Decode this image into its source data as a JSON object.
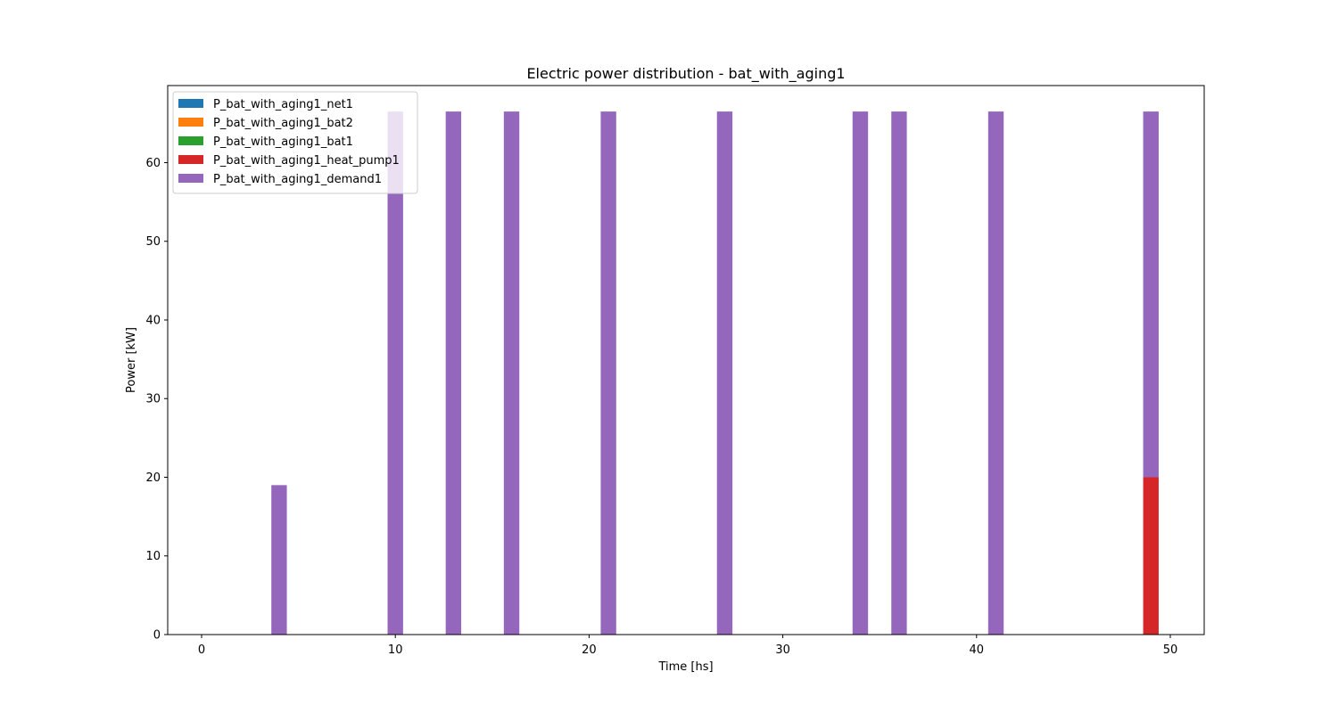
{
  "chart_data": {
    "type": "bar",
    "stacked": true,
    "title": "Electric power distribution - bat_with_aging1",
    "xlabel": "Time [hs]",
    "ylabel": "Power [kW]",
    "xlim": [
      -1.75,
      51.75
    ],
    "ylim": [
      0,
      69.8
    ],
    "xticks": [
      0,
      10,
      20,
      30,
      40,
      50
    ],
    "yticks": [
      0,
      10,
      20,
      30,
      40,
      50,
      60
    ],
    "bar_width": 0.8,
    "grid": false,
    "legend_position": "top-left",
    "x": [
      0,
      1,
      2,
      3,
      4,
      5,
      6,
      7,
      8,
      9,
      10,
      11,
      12,
      13,
      14,
      15,
      16,
      17,
      18,
      19,
      20,
      21,
      22,
      23,
      24,
      25,
      26,
      27,
      28,
      29,
      30,
      31,
      32,
      33,
      34,
      35,
      36,
      37,
      38,
      39,
      40,
      41,
      42,
      43,
      44,
      45,
      46,
      47,
      48,
      49
    ],
    "series": [
      {
        "name": "P_bat_with_aging1_net1",
        "color": "#1f77b4",
        "values": [
          0,
          0,
          0,
          0,
          0,
          0,
          0,
          0,
          0,
          0,
          0,
          0,
          0,
          0,
          0,
          0,
          0,
          0,
          0,
          0,
          0,
          0,
          0,
          0,
          0,
          0,
          0,
          0,
          0,
          0,
          0,
          0,
          0,
          0,
          0,
          0,
          0,
          0,
          0,
          0,
          0,
          0,
          0,
          0,
          0,
          0,
          0,
          0,
          0,
          0
        ]
      },
      {
        "name": "P_bat_with_aging1_bat2",
        "color": "#ff7f0e",
        "values": [
          0,
          0,
          0,
          0,
          0,
          0,
          0,
          0,
          0,
          0,
          0,
          0,
          0,
          0,
          0,
          0,
          0,
          0,
          0,
          0,
          0,
          0,
          0,
          0,
          0,
          0,
          0,
          0,
          0,
          0,
          0,
          0,
          0,
          0,
          0,
          0,
          0,
          0,
          0,
          0,
          0,
          0,
          0,
          0,
          0,
          0,
          0,
          0,
          0,
          0
        ]
      },
      {
        "name": "P_bat_with_aging1_bat1",
        "color": "#2ca02c",
        "values": [
          0,
          0,
          0,
          0,
          0,
          0,
          0,
          0,
          0,
          0,
          0,
          0,
          0,
          0,
          0,
          0,
          0,
          0,
          0,
          0,
          0,
          0,
          0,
          0,
          0,
          0,
          0,
          0,
          0,
          0,
          0,
          0,
          0,
          0,
          0,
          0,
          0,
          0,
          0,
          0,
          0,
          0,
          0,
          0,
          0,
          0,
          0,
          0,
          0,
          0
        ]
      },
      {
        "name": "P_bat_with_aging1_heat_pump1",
        "color": "#d62728",
        "values": [
          0,
          0,
          0,
          0,
          0,
          0,
          0,
          0,
          0,
          0,
          0,
          0,
          0,
          0,
          0,
          0,
          0,
          0,
          0,
          0,
          0,
          0,
          0,
          0,
          0,
          0,
          0,
          0,
          0,
          0,
          0,
          0,
          0,
          0,
          0,
          0,
          0,
          0,
          0,
          0,
          0,
          0,
          0,
          0,
          0,
          0,
          0,
          0,
          0,
          20
        ]
      },
      {
        "name": "P_bat_with_aging1_demand1",
        "color": "#9467bd",
        "values": [
          0,
          0,
          0,
          0,
          19,
          0,
          0,
          0,
          0,
          0,
          66.5,
          0,
          0,
          66.5,
          0,
          0,
          66.5,
          0,
          0,
          0,
          0,
          66.5,
          0,
          0,
          0,
          0,
          0,
          66.5,
          0,
          0,
          0,
          0,
          0,
          0,
          66.5,
          0,
          66.5,
          0,
          0,
          0,
          0,
          66.5,
          0,
          0,
          0,
          0,
          0,
          0,
          0,
          46.5
        ]
      }
    ]
  }
}
